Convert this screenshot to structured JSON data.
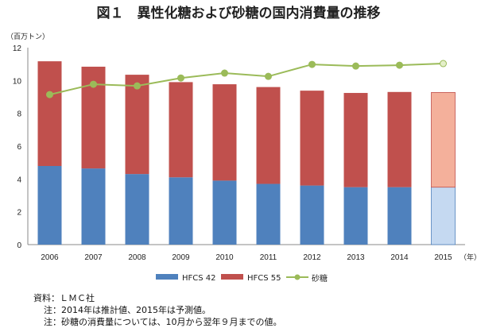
{
  "chart_data": {
    "type": "bar",
    "stacked": true,
    "title": "図１　異性化糖および砂糖の国内消費量の推移",
    "ylabel": "（百万トン）",
    "xlabel": "（年）",
    "ylim": [
      0,
      12
    ],
    "yticks": [
      "0",
      "2",
      "4",
      "6",
      "8",
      "10",
      "12"
    ],
    "categories": [
      "2006",
      "2007",
      "2008",
      "2009",
      "2010",
      "2011",
      "2012",
      "2013",
      "2014",
      "2015"
    ],
    "series": [
      {
        "name": "HFCS 42",
        "type": "bar",
        "color": "#4f81bd",
        "forecast_color": "#c5d9f1",
        "values": [
          4.79,
          4.64,
          4.3,
          4.1,
          3.9,
          3.7,
          3.6,
          3.5,
          3.5,
          3.5
        ]
      },
      {
        "name": "HFCS 55",
        "type": "bar",
        "color": "#c0504d",
        "forecast_color": "#f4b09b",
        "values": [
          6.38,
          6.2,
          6.05,
          5.8,
          5.87,
          5.9,
          5.78,
          5.74,
          5.8,
          5.77
        ]
      },
      {
        "name": "砂糖",
        "type": "line",
        "color": "#9bbb59",
        "values": [
          9.14,
          9.77,
          9.67,
          10.15,
          10.45,
          10.25,
          10.98,
          10.88,
          10.93,
          11.03
        ]
      }
    ],
    "legend_position": "bottom",
    "grid": false
  },
  "notes": {
    "source": "資料：ＬＭＣ社",
    "note1": "注：2014年は推計値、2015年は予測値。",
    "note2": "注：砂糖の消費量については、10月から翌年９月までの値。"
  }
}
